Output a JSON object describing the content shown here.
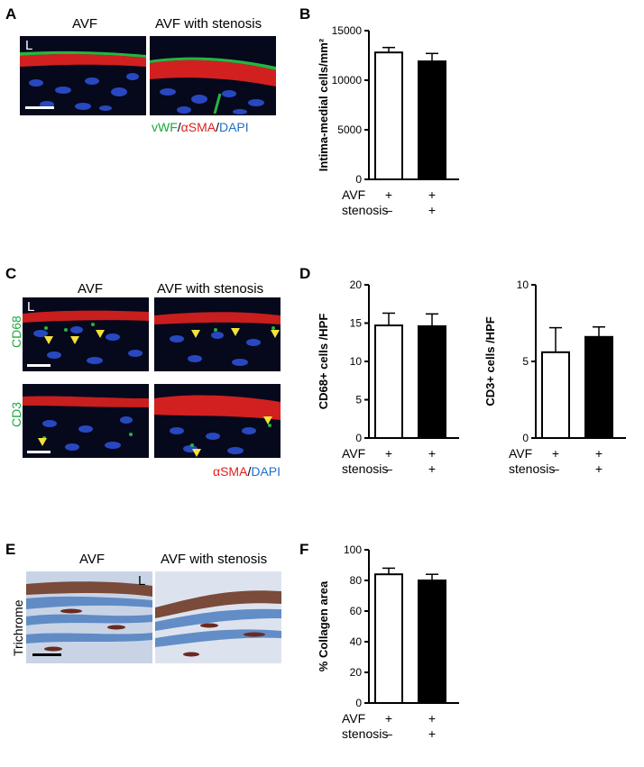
{
  "panels": {
    "A": {
      "letter": "A",
      "col1": "AVF",
      "col2": "AVF with stenosis",
      "lumen": "L",
      "stain": {
        "vwf": "vWF",
        "slash1": "/",
        "asma": "αSMA",
        "slash2": "/",
        "dapi": "DAPI"
      }
    },
    "B": {
      "letter": "B"
    },
    "C": {
      "letter": "C",
      "col1": "AVF",
      "col2": "AVF with stenosis",
      "lumen": "L",
      "row1": "CD68",
      "row2": "CD3",
      "stain": {
        "asma": "αSMA",
        "slash": "/",
        "dapi": "DAPI"
      }
    },
    "D": {
      "letter": "D"
    },
    "E": {
      "letter": "E",
      "col1": "AVF",
      "col2": "AVF with stenosis",
      "lumen": "L",
      "row": "Trichrome"
    },
    "F": {
      "letter": "F"
    }
  },
  "colors": {
    "green": "#1aaa3c",
    "red": "#e02020",
    "blue": "#1f6fc8",
    "arrow": "#f2e23a"
  },
  "chart_data": [
    {
      "id": "B",
      "type": "bar",
      "ylabel": "Intima-medial cells/mm²",
      "ylim": [
        0,
        15000
      ],
      "yticks": [
        0,
        5000,
        10000,
        15000
      ],
      "categories": [
        "AVF",
        "AVF with stenosis"
      ],
      "values": [
        12800,
        11900
      ],
      "errors": [
        500,
        800
      ],
      "fills": [
        "white",
        "black"
      ],
      "rows": [
        {
          "label": "AVF",
          "marks": [
            "+",
            "+"
          ]
        },
        {
          "label": "stenosis",
          "marks": [
            "–",
            "+"
          ]
        }
      ]
    },
    {
      "id": "D1",
      "type": "bar",
      "ylabel": "CD68+ cells /HPF",
      "ylim": [
        0,
        20
      ],
      "yticks": [
        0,
        5,
        10,
        15,
        20
      ],
      "categories": [
        "AVF",
        "AVF with stenosis"
      ],
      "values": [
        14.7,
        14.6
      ],
      "errors": [
        1.6,
        1.6
      ],
      "fills": [
        "white",
        "black"
      ],
      "rows": [
        {
          "label": "AVF",
          "marks": [
            "+",
            "+"
          ]
        },
        {
          "label": "stenosis",
          "marks": [
            "–",
            "+"
          ]
        }
      ]
    },
    {
      "id": "D2",
      "type": "bar",
      "ylabel": "CD3+ cells /HPF",
      "ylim": [
        0,
        10
      ],
      "yticks": [
        0,
        5,
        10
      ],
      "categories": [
        "AVF",
        "AVF with stenosis"
      ],
      "values": [
        5.6,
        6.6
      ],
      "errors": [
        1.6,
        0.65
      ],
      "fills": [
        "white",
        "black"
      ],
      "rows": [
        {
          "label": "AVF",
          "marks": [
            "+",
            "+"
          ]
        },
        {
          "label": "stenosis",
          "marks": [
            "–",
            "+"
          ]
        }
      ]
    },
    {
      "id": "F",
      "type": "bar",
      "ylabel": "% Collagen area",
      "ylim": [
        0,
        100
      ],
      "yticks": [
        0,
        20,
        40,
        60,
        80,
        100
      ],
      "categories": [
        "AVF",
        "AVF with stenosis"
      ],
      "values": [
        84,
        80
      ],
      "errors": [
        4,
        4
      ],
      "fills": [
        "white",
        "black"
      ],
      "rows": [
        {
          "label": "AVF",
          "marks": [
            "+",
            "+"
          ]
        },
        {
          "label": "stenosis",
          "marks": [
            "–",
            "+"
          ]
        }
      ]
    }
  ]
}
